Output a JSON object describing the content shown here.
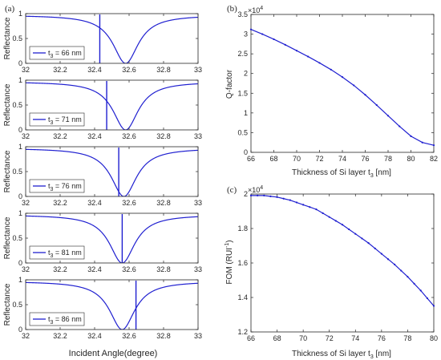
{
  "colors": {
    "line": "#1f1fd0",
    "axis": "#262626"
  },
  "chart_data": [
    {
      "type": "line",
      "panel_label": "(a)",
      "ylabel": "Reflectance",
      "xlabel": "Incident Angle(degree)",
      "xlim": [
        32,
        33
      ],
      "ylim": [
        0,
        1
      ],
      "xticks": [
        "32",
        "32.2",
        "32.4",
        "32.6",
        "32.8",
        "33"
      ],
      "yticks": [
        "0",
        "0.5",
        "1"
      ],
      "subplots": [
        {
          "legend": "t3 = 66 nm",
          "legend_base": "t",
          "legend_sub": "3",
          "legend_rest": " = 66 nm",
          "spr_center": 32.58,
          "spr_width": 0.09,
          "spike_x": 32.43,
          "spike_width": 0.002
        },
        {
          "legend": "t3 = 71 nm",
          "legend_base": "t",
          "legend_sub": "3",
          "legend_rest": " = 71 nm",
          "spr_center": 32.58,
          "spr_width": 0.09,
          "spike_x": 32.47,
          "spike_width": 0.002
        },
        {
          "legend": "t3 = 76 nm",
          "legend_base": "t",
          "legend_sub": "3",
          "legend_rest": " = 76 nm",
          "spr_center": 32.57,
          "spr_width": 0.09,
          "spike_x": 32.54,
          "spike_width": 0.002
        },
        {
          "legend": "t3 = 81 nm",
          "legend_base": "t",
          "legend_sub": "3",
          "legend_rest": " = 81 nm",
          "spr_center": 32.56,
          "spr_width": 0.09,
          "spike_x": 32.56,
          "spike_width": 0.002
        },
        {
          "legend": "t3 = 86 nm",
          "legend_base": "t",
          "legend_sub": "3",
          "legend_rest": " = 86 nm",
          "spr_center": 32.56,
          "spr_width": 0.09,
          "spike_x": 32.64,
          "spike_width": 0.002
        }
      ]
    },
    {
      "type": "line",
      "panel_label": "(b)",
      "ylabel": "Q-factor",
      "xlabel_base": "Thickness of Si layer t",
      "xlabel_sub": "3",
      "xlabel_rest": " [nm]",
      "multiplier": "×10",
      "multiplier_exp": "4",
      "xlim": [
        66,
        82
      ],
      "ylim": [
        0,
        3.5
      ],
      "xticks": [
        "66",
        "68",
        "70",
        "72",
        "74",
        "76",
        "78",
        "80",
        "82"
      ],
      "yticks": [
        "0",
        "0.5",
        "1",
        "1.5",
        "2",
        "2.5",
        "3",
        "3.5"
      ],
      "x": [
        66,
        67,
        68,
        69,
        70,
        71,
        72,
        73,
        74,
        75,
        76,
        77,
        78,
        79,
        80,
        81,
        82
      ],
      "y": [
        3.12,
        3.0,
        2.87,
        2.73,
        2.58,
        2.43,
        2.27,
        2.1,
        1.91,
        1.7,
        1.46,
        1.2,
        0.93,
        0.66,
        0.41,
        0.25,
        0.18
      ]
    },
    {
      "type": "line",
      "panel_label": "(c)",
      "ylabel_base": "FOM (RUI",
      "ylabel_sup": "-1",
      "ylabel_rest": ")",
      "xlabel_base": "Thickness of Si layer t",
      "xlabel_sub": "3",
      "xlabel_rest": " [nm]",
      "multiplier": "×10",
      "multiplier_exp": "4",
      "xlim": [
        66,
        80
      ],
      "ylim": [
        1.1,
        2.0
      ],
      "xticks": [
        "66",
        "68",
        "70",
        "72",
        "74",
        "76",
        "78",
        "80"
      ],
      "yticks": [
        "1.2",
        "1.4",
        "1.6",
        "1.8",
        "2"
      ],
      "x": [
        66,
        66.5,
        67,
        67.5,
        68,
        68.5,
        69,
        69.5,
        70,
        70.5,
        71,
        71.5,
        72,
        72.5,
        73,
        73.5,
        74,
        74.5,
        75,
        75.5,
        76,
        76.5,
        77,
        77.5,
        78,
        78.5,
        79,
        79.5,
        80
      ],
      "y": [
        1.99,
        1.99,
        1.99,
        1.985,
        1.98,
        1.97,
        1.96,
        1.945,
        1.93,
        1.915,
        1.9,
        1.875,
        1.85,
        1.825,
        1.8,
        1.77,
        1.74,
        1.71,
        1.68,
        1.645,
        1.61,
        1.575,
        1.54,
        1.5,
        1.46,
        1.415,
        1.37,
        1.32,
        1.27
      ]
    }
  ]
}
